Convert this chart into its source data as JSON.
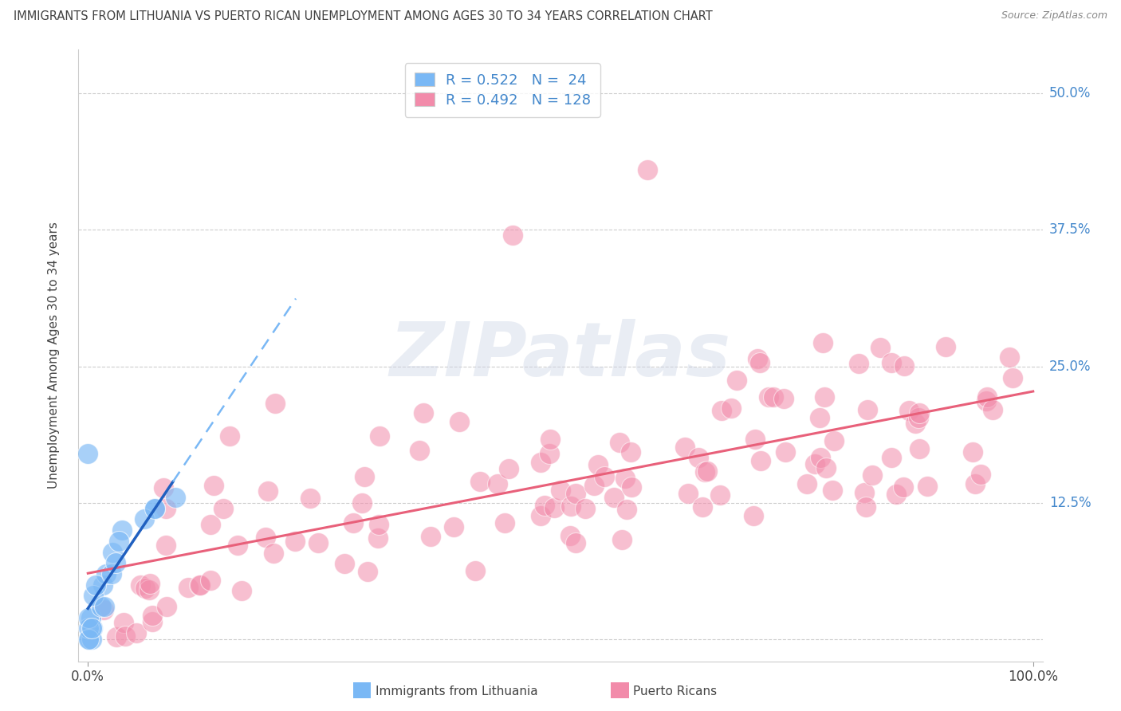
{
  "title": "IMMIGRANTS FROM LITHUANIA VS PUERTO RICAN UNEMPLOYMENT AMONG AGES 30 TO 34 YEARS CORRELATION CHART",
  "source": "Source: ZipAtlas.com",
  "ylabel": "Unemployment Among Ages 30 to 34 years",
  "xlim": [
    -0.01,
    1.01
  ],
  "ylim": [
    -0.02,
    0.54
  ],
  "yticks": [
    0.0,
    0.125,
    0.25,
    0.375,
    0.5
  ],
  "ytick_labels": [
    "",
    "12.5%",
    "25.0%",
    "37.5%",
    "50.0%"
  ],
  "xtick_labels": [
    "0.0%",
    "100.0%"
  ],
  "blue_R": "0.522",
  "blue_N": "24",
  "pink_R": "0.492",
  "pink_N": "128",
  "blue_scatter_color": "#7ab8f5",
  "pink_scatter_color": "#f28baa",
  "blue_line_solid_color": "#2060c0",
  "blue_line_dash_color": "#7ab8f5",
  "pink_line_color": "#e8607a",
  "legend_blue_label": "Immigrants from Lithuania",
  "legend_pink_label": "Puerto Ricans",
  "watermark": "ZIPatlas",
  "background_color": "#ffffff",
  "grid_color": "#c8c8c8",
  "title_color": "#404040",
  "tick_label_color": "#4488cc",
  "source_color": "#888888"
}
